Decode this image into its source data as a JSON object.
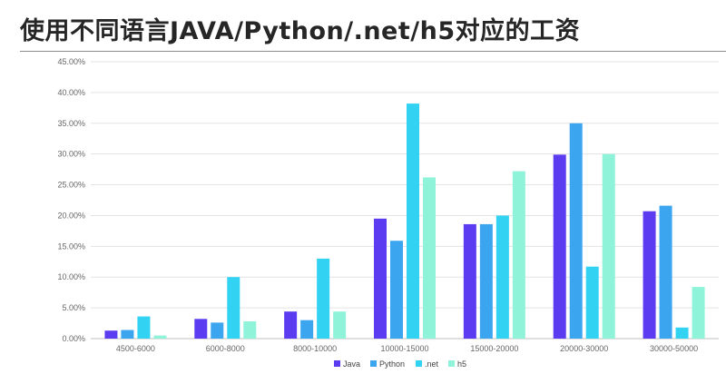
{
  "title": "使用不同语言JAVA/Python/.net/h5对应的工资",
  "chart_data": {
    "type": "bar",
    "title": "",
    "xlabel": "",
    "ylabel": "",
    "ylim": [
      0,
      45
    ],
    "yticks": [
      "0.00%",
      "5.00%",
      "10.00%",
      "15.00%",
      "20.00%",
      "25.00%",
      "30.00%",
      "35.00%",
      "40.00%",
      "45.00%"
    ],
    "grid": true,
    "legend_position": "bottom",
    "categories": [
      "4500-6000",
      "6000-8000",
      "8000-10000",
      "10000-15000",
      "15000-20000",
      "20000-30000",
      "30000-50000"
    ],
    "series": [
      {
        "name": "Java",
        "color": "#5c3cf0",
        "values": [
          1.3,
          3.2,
          4.4,
          19.5,
          18.6,
          29.9,
          20.7
        ]
      },
      {
        "name": "Python",
        "color": "#3ba5ef",
        "values": [
          1.4,
          2.6,
          3.0,
          15.9,
          18.6,
          35.0,
          21.6
        ]
      },
      {
        "name": ".net",
        "color": "#31d2f2",
        "values": [
          3.6,
          10.0,
          13.0,
          38.2,
          20.0,
          11.7,
          1.8
        ]
      },
      {
        "name": "h5",
        "color": "#8ef3d9",
        "values": [
          0.5,
          2.8,
          4.4,
          26.2,
          27.2,
          30.0,
          8.4
        ]
      }
    ]
  }
}
